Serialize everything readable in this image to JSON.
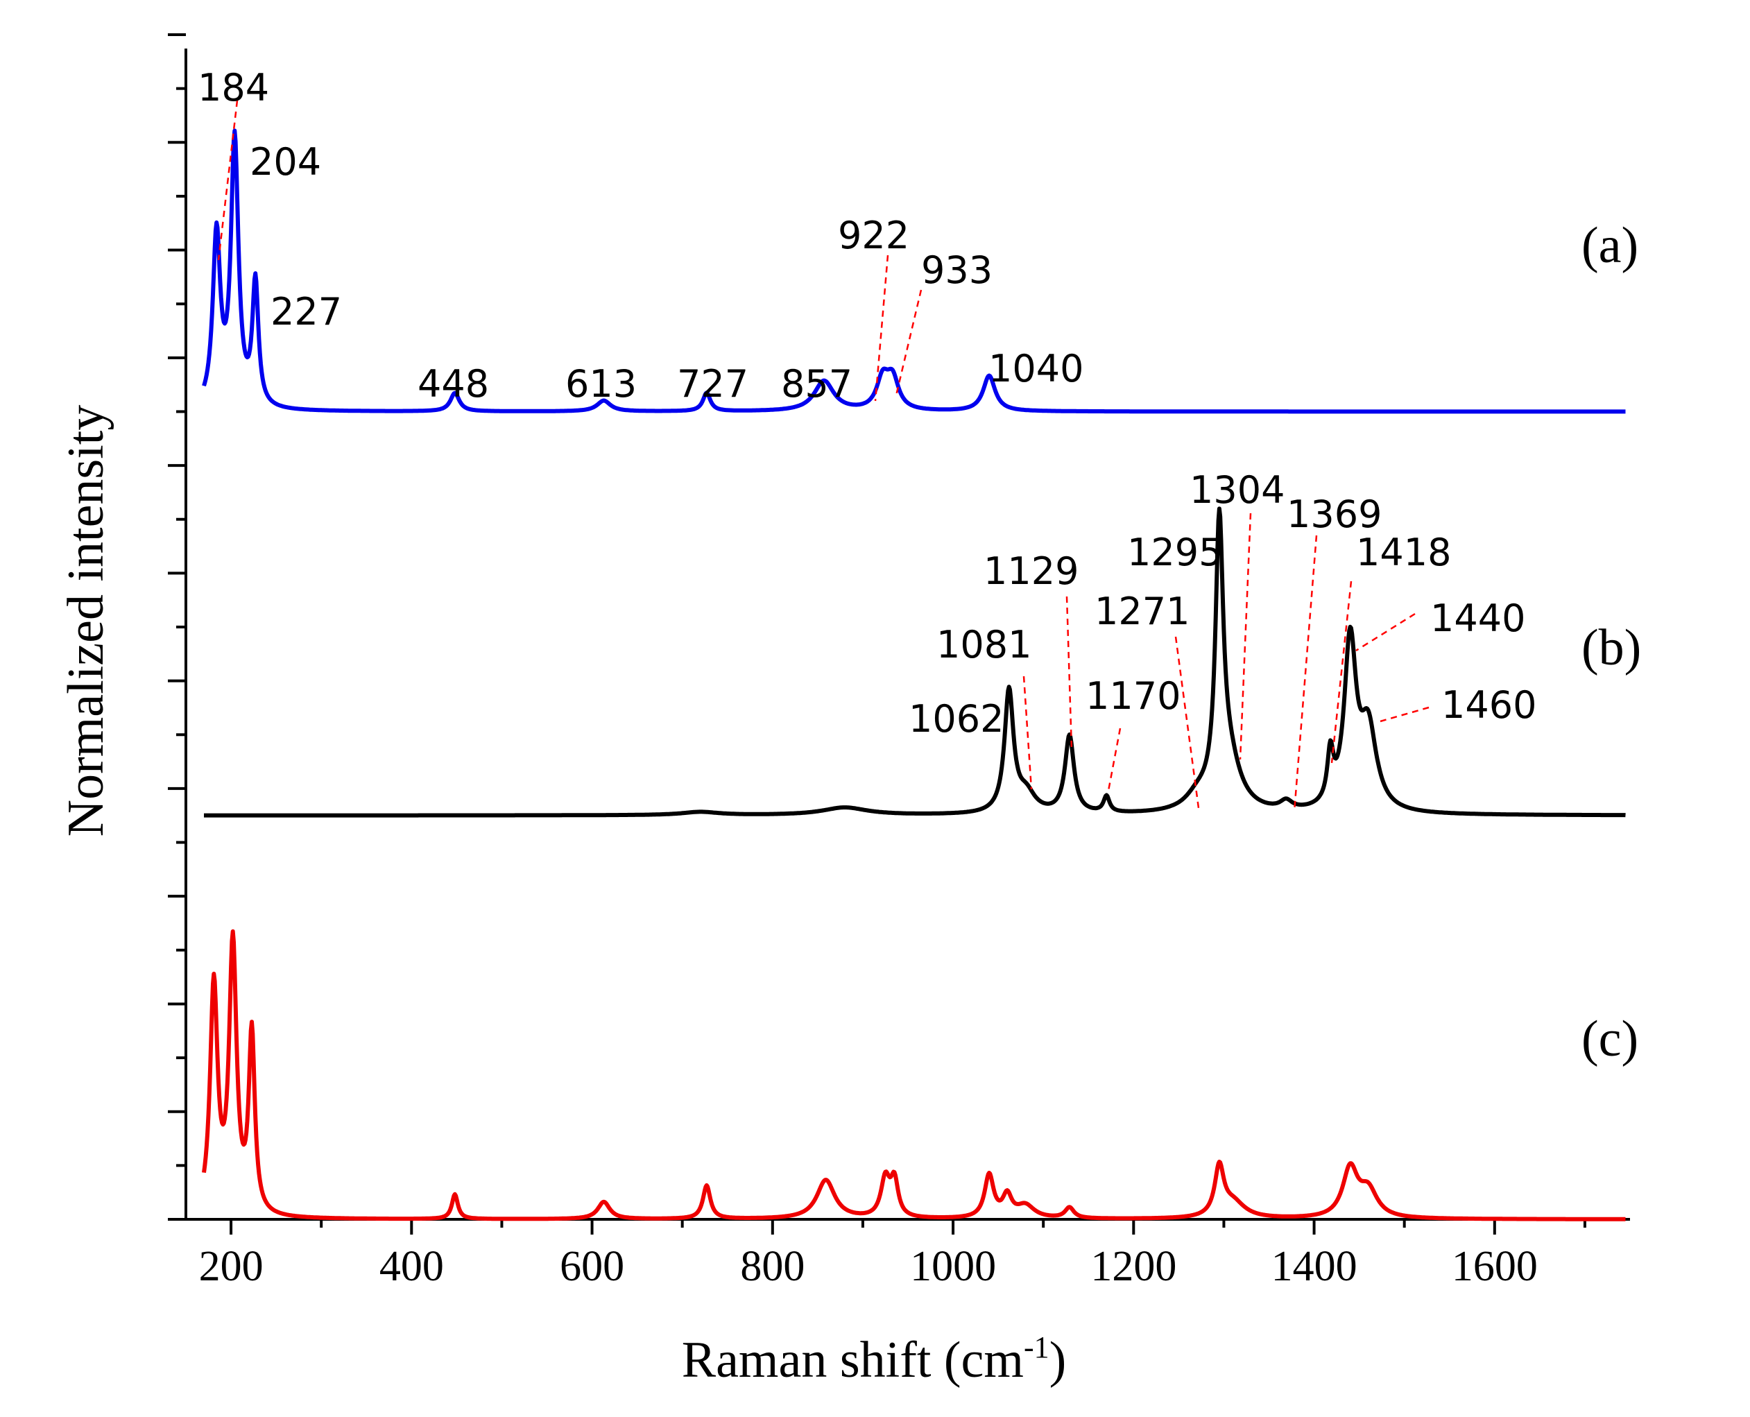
{
  "chart_data": {
    "type": "line",
    "title": "",
    "xlabel": "Raman shift (cm",
    "xlabel_sup": "-1",
    "xlabel_close": ")",
    "ylabel": "Normalized intensity",
    "xlim": [
      150,
      1750
    ],
    "ylim": [
      0,
      11
    ],
    "xticks": [
      200,
      400,
      600,
      800,
      1000,
      1200,
      1400,
      1600
    ],
    "xtick_labels": [
      "200",
      "400",
      "600",
      "800",
      "1000",
      "1200",
      "1400",
      "1600"
    ],
    "yticks_unlabeled": [
      0,
      1,
      2,
      3,
      4,
      5,
      6,
      7,
      8,
      9,
      10,
      11
    ],
    "series": [
      {
        "name": "(a)",
        "color": "#0000ee",
        "baseline": 7.5,
        "peaks": [
          {
            "x": 184,
            "h": 1.6,
            "w": 5
          },
          {
            "x": 204,
            "h": 2.48,
            "w": 5
          },
          {
            "x": 227,
            "h": 1.15,
            "w": 4
          },
          {
            "x": 448,
            "h": 0.17,
            "w": 6
          },
          {
            "x": 613,
            "h": 0.1,
            "w": 9
          },
          {
            "x": 727,
            "h": 0.17,
            "w": 5
          },
          {
            "x": 857,
            "h": 0.28,
            "w": 13
          },
          {
            "x": 922,
            "h": 0.28,
            "w": 8
          },
          {
            "x": 933,
            "h": 0.28,
            "w": 8
          },
          {
            "x": 1040,
            "h": 0.33,
            "w": 8
          }
        ],
        "annotations": [
          "184",
          "204",
          "227",
          "448",
          "613",
          "727",
          "857",
          "922",
          "933",
          "1040"
        ]
      },
      {
        "name": "(b)",
        "color": "#000000",
        "baseline": 3.75,
        "peaks": [
          {
            "x": 720,
            "h": 0.03,
            "w": 25
          },
          {
            "x": 880,
            "h": 0.07,
            "w": 30
          },
          {
            "x": 1062,
            "h": 1.13,
            "w": 6
          },
          {
            "x": 1081,
            "h": 0.18,
            "w": 12
          },
          {
            "x": 1129,
            "h": 0.72,
            "w": 6
          },
          {
            "x": 1170,
            "h": 0.15,
            "w": 4
          },
          {
            "x": 1271,
            "h": 0.12,
            "w": 16
          },
          {
            "x": 1295,
            "h": 2.42,
            "w": 5
          },
          {
            "x": 1304,
            "h": 0.5,
            "w": 16
          },
          {
            "x": 1369,
            "h": 0.08,
            "w": 8
          },
          {
            "x": 1418,
            "h": 0.45,
            "w": 4
          },
          {
            "x": 1440,
            "h": 1.55,
            "w": 8
          },
          {
            "x": 1460,
            "h": 0.75,
            "w": 11
          }
        ],
        "annotations": [
          "1062",
          "1081",
          "1129",
          "1170",
          "1271",
          "1295",
          "1304",
          "1369",
          "1418",
          "1440",
          "1460"
        ]
      },
      {
        "name": "(c)",
        "color": "#ee0000",
        "baseline": 0,
        "peaks": [
          {
            "x": 181,
            "h": 2.13,
            "w": 5
          },
          {
            "x": 202,
            "h": 2.5,
            "w": 5
          },
          {
            "x": 223,
            "h": 1.67,
            "w": 4
          },
          {
            "x": 448,
            "h": 0.23,
            "w": 4
          },
          {
            "x": 613,
            "h": 0.16,
            "w": 8
          },
          {
            "x": 727,
            "h": 0.31,
            "w": 5
          },
          {
            "x": 859,
            "h": 0.36,
            "w": 12
          },
          {
            "x": 925,
            "h": 0.36,
            "w": 6
          },
          {
            "x": 935,
            "h": 0.33,
            "w": 5
          },
          {
            "x": 1040,
            "h": 0.4,
            "w": 6
          },
          {
            "x": 1060,
            "h": 0.2,
            "w": 6
          },
          {
            "x": 1080,
            "h": 0.12,
            "w": 12
          },
          {
            "x": 1129,
            "h": 0.1,
            "w": 6
          },
          {
            "x": 1295,
            "h": 0.45,
            "w": 6
          },
          {
            "x": 1310,
            "h": 0.15,
            "w": 16
          },
          {
            "x": 1440,
            "h": 0.45,
            "w": 10
          },
          {
            "x": 1460,
            "h": 0.25,
            "w": 12
          }
        ],
        "annotations": []
      }
    ],
    "panel_labels": [
      "(a)",
      "(b)",
      "(c)"
    ]
  }
}
